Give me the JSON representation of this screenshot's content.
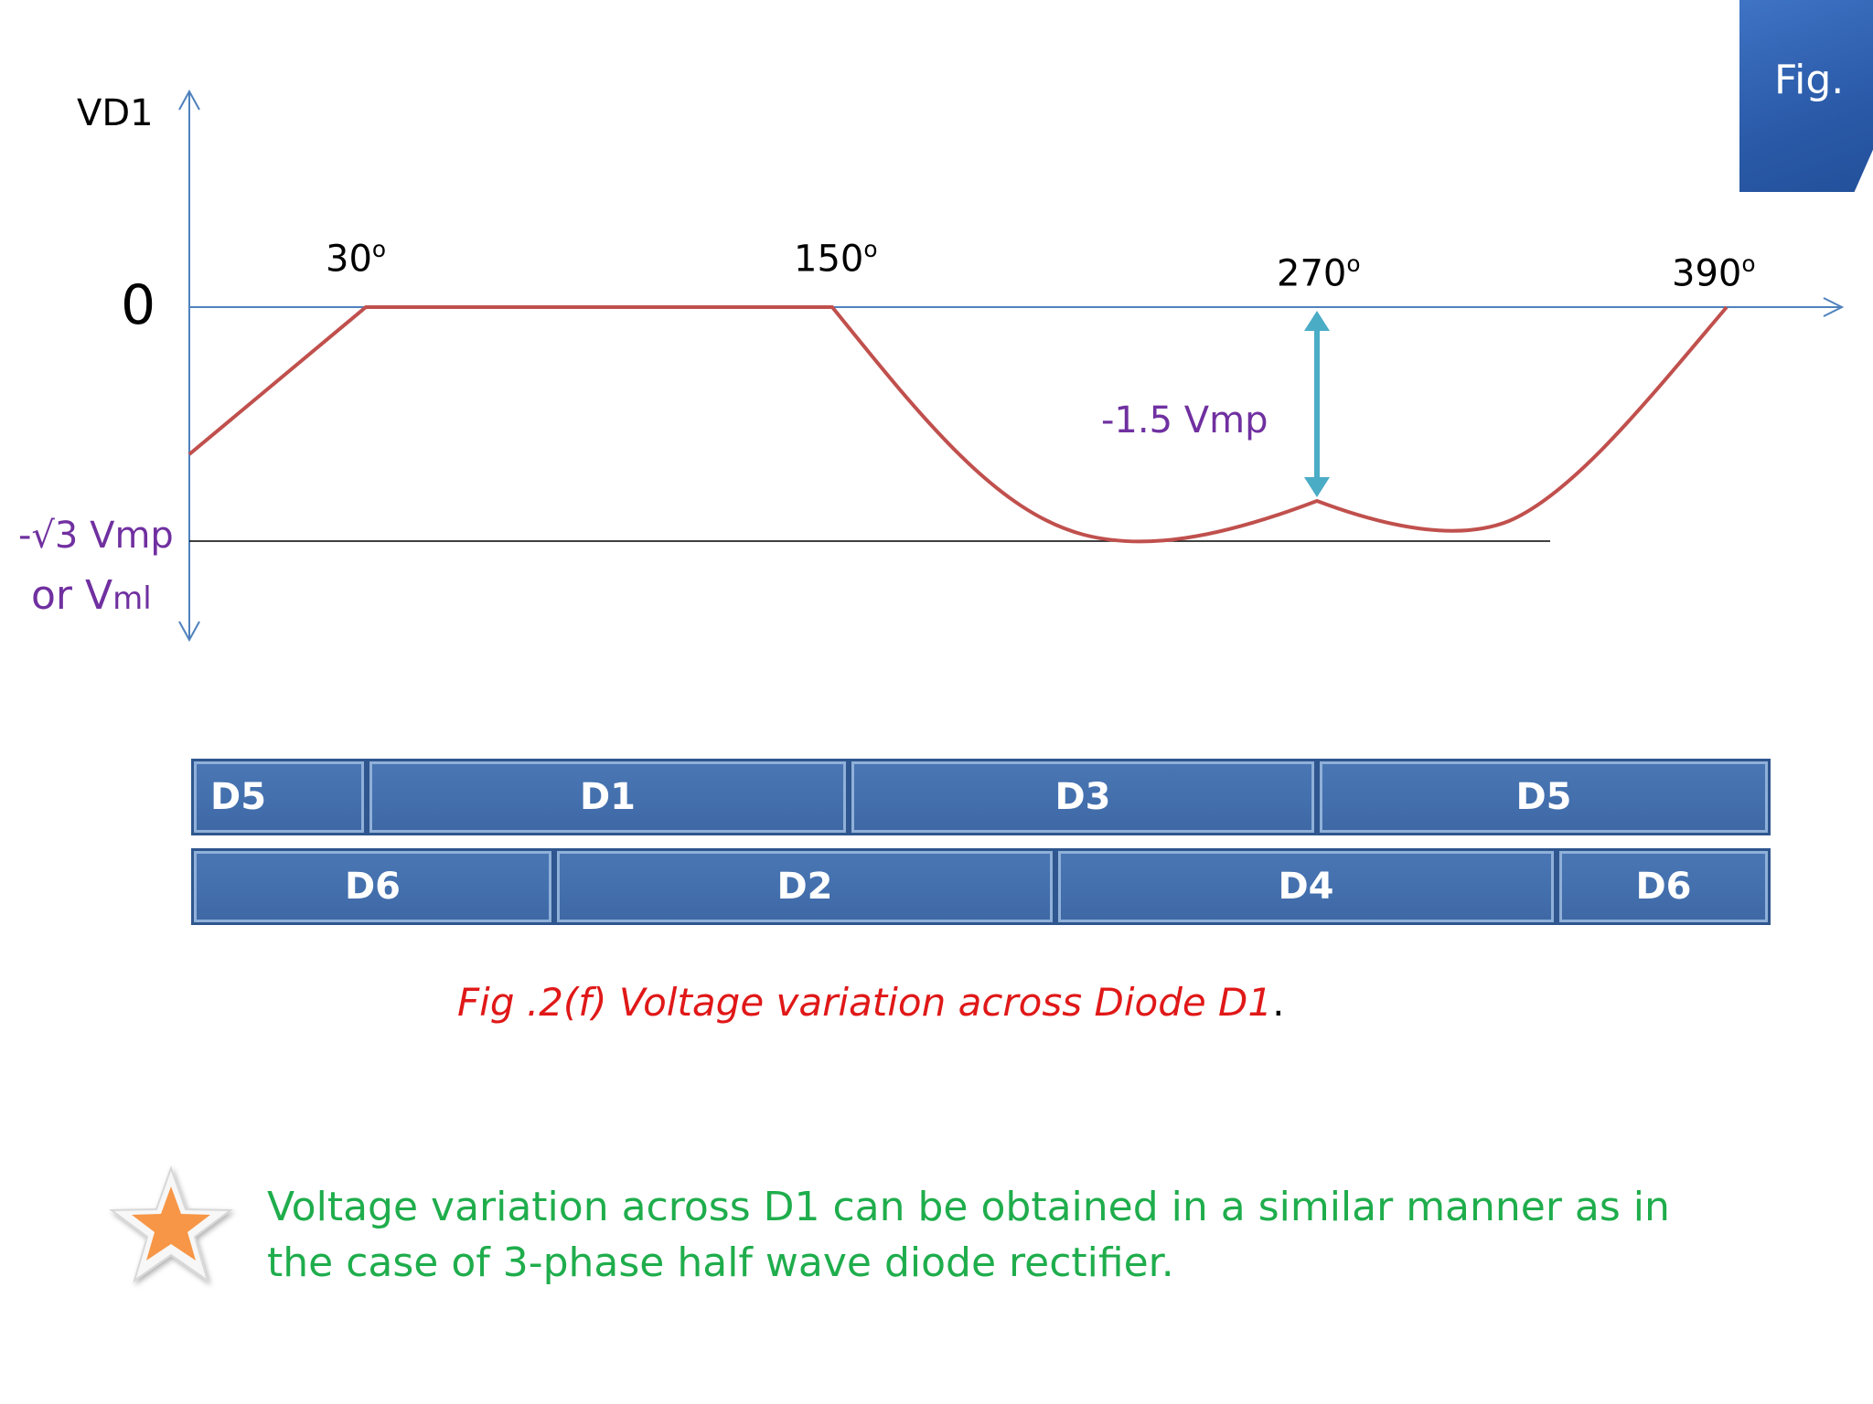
{
  "axis": {
    "y_label": "VD1",
    "zero_label": "0",
    "min_label_line1": "-√3 Vmp",
    "min_label_line2_main": "or V",
    "min_label_line2_sub": "ml"
  },
  "angles": [
    {
      "value": "30",
      "unit": "o"
    },
    {
      "value": "150",
      "unit": "o"
    },
    {
      "value": "270",
      "unit": "o"
    },
    {
      "value": "390",
      "unit": "o"
    }
  ],
  "annotation": {
    "text": "-1.5 Vmp"
  },
  "conduction": {
    "top_row": [
      "D5",
      "D1",
      "D3",
      "D5"
    ],
    "bottom_row": [
      "D6",
      "D2",
      "D4",
      "D6"
    ]
  },
  "caption": {
    "text": "Fig .2(f) Voltage variation across Diode D1",
    "end": "."
  },
  "note": {
    "text": "Voltage variation across D1 can be obtained in a similar manner as in the case of 3-phase half wave diode rectifier."
  },
  "tab": {
    "label": "Fig."
  },
  "colors": {
    "waveform": "#c0504d",
    "axis": "#4f81bd",
    "dimension_arrow": "#4bacc6",
    "bar_fill": "#4470ae",
    "caption": "#e01818",
    "note": "#1fad4c",
    "star": "#f79646"
  },
  "icons": {
    "bullet": "star-icon"
  }
}
